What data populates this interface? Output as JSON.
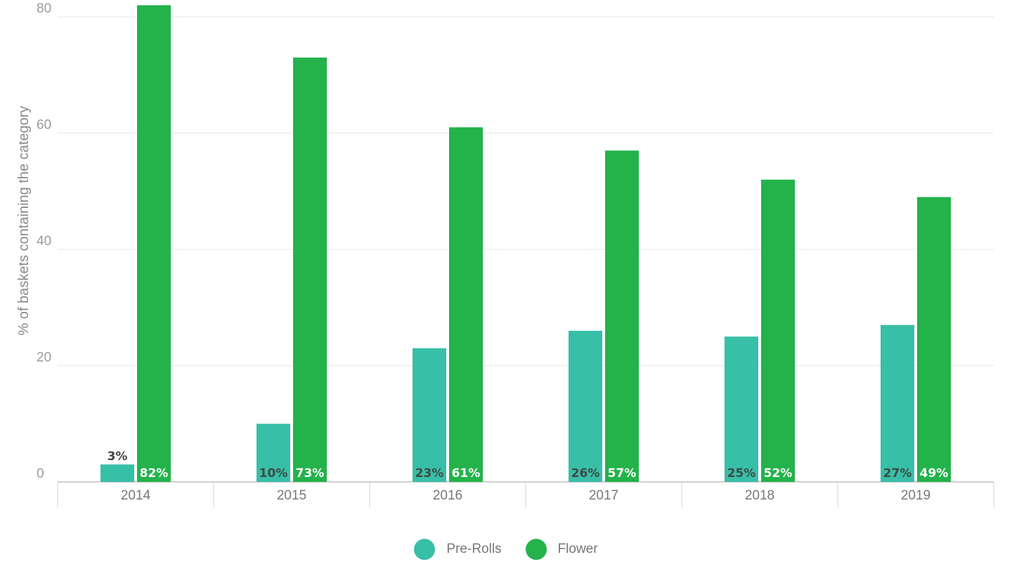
{
  "chart_data": {
    "type": "bar",
    "categories": [
      "2014",
      "2015",
      "2016",
      "2017",
      "2018",
      "2019"
    ],
    "series": [
      {
        "name": "Pre-Rolls",
        "values": [
          3,
          10,
          23,
          26,
          25,
          27
        ],
        "labels": [
          "3%",
          "10%",
          "23%",
          "26%",
          "25%",
          "27%"
        ],
        "color": "#38bfa7"
      },
      {
        "name": "Flower",
        "values": [
          82,
          73,
          61,
          57,
          52,
          49
        ],
        "labels": [
          "82%",
          "73%",
          "61%",
          "57%",
          "52%",
          "49%"
        ],
        "color": "#24b24b"
      }
    ],
    "title": "",
    "xlabel": "",
    "ylabel": "% of baskets containing the category",
    "ylim": [
      0,
      80
    ],
    "yticks": [
      "0",
      "20",
      "40",
      "60",
      "80"
    ],
    "grid": true,
    "legend_position": "bottom-center"
  },
  "legend": {
    "items": [
      {
        "label": "Pre-Rolls",
        "color": "#38bfa7"
      },
      {
        "label": "Flower",
        "color": "#24b24b"
      }
    ]
  }
}
